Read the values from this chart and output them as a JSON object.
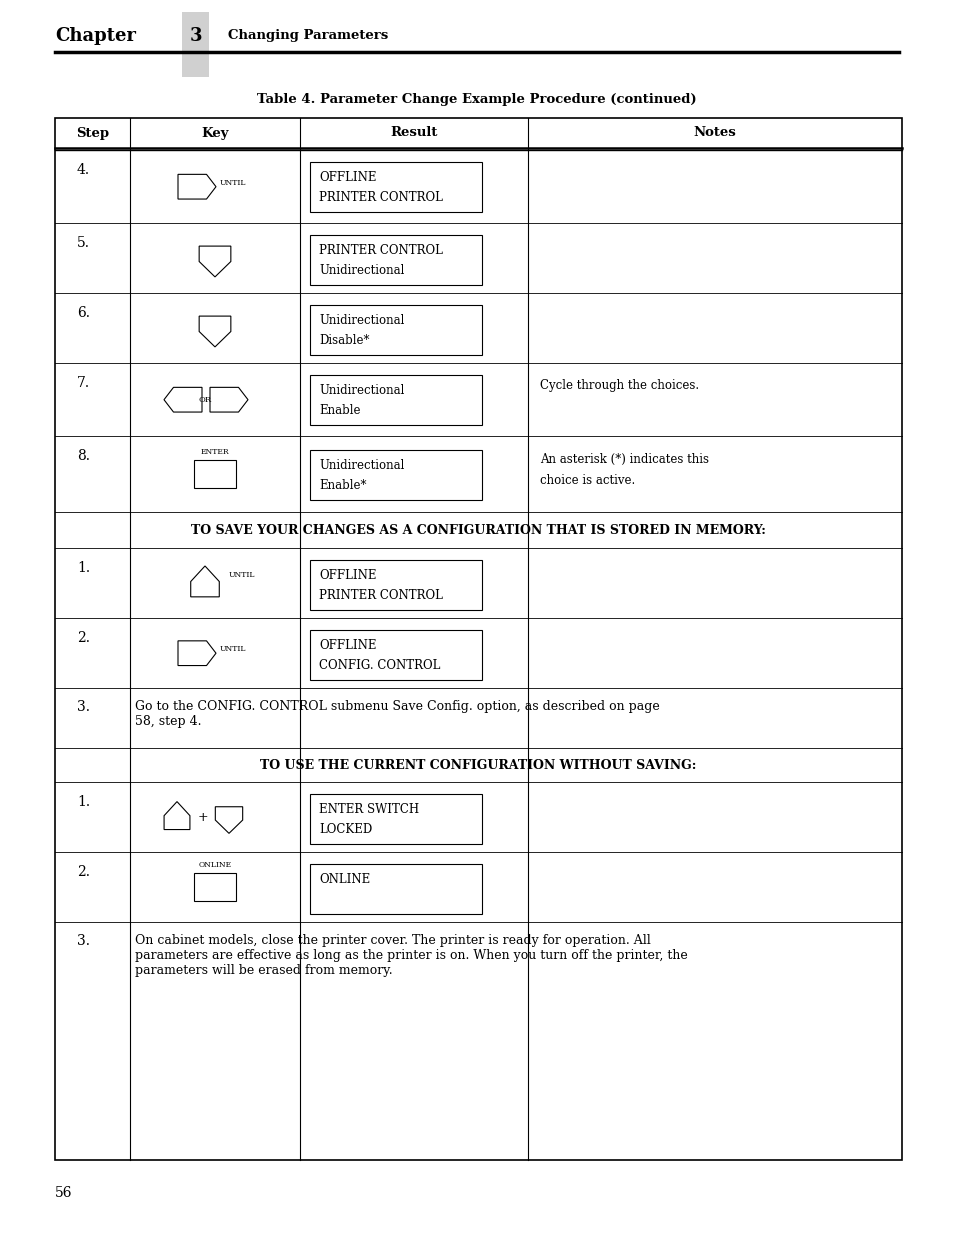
{
  "page_width": 9.54,
  "page_height": 12.35,
  "bg_color": "#ffffff",
  "chapter_text": "Chapter",
  "chapter_num": "3",
  "chapter_sub": "Changing Parameters",
  "table_title": "Table 4. Parameter Change Example Procedure (continued)",
  "col_headers": [
    "Step",
    "Key",
    "Result",
    "Notes"
  ],
  "page_number": "56",
  "save_header": "TO SAVE YOUR CHANGES AS A CONFIGURATION THAT IS STORED IN MEMORY:",
  "use_header": "TO USE THE CURRENT CONFIGURATION WITHOUT SAVING:"
}
